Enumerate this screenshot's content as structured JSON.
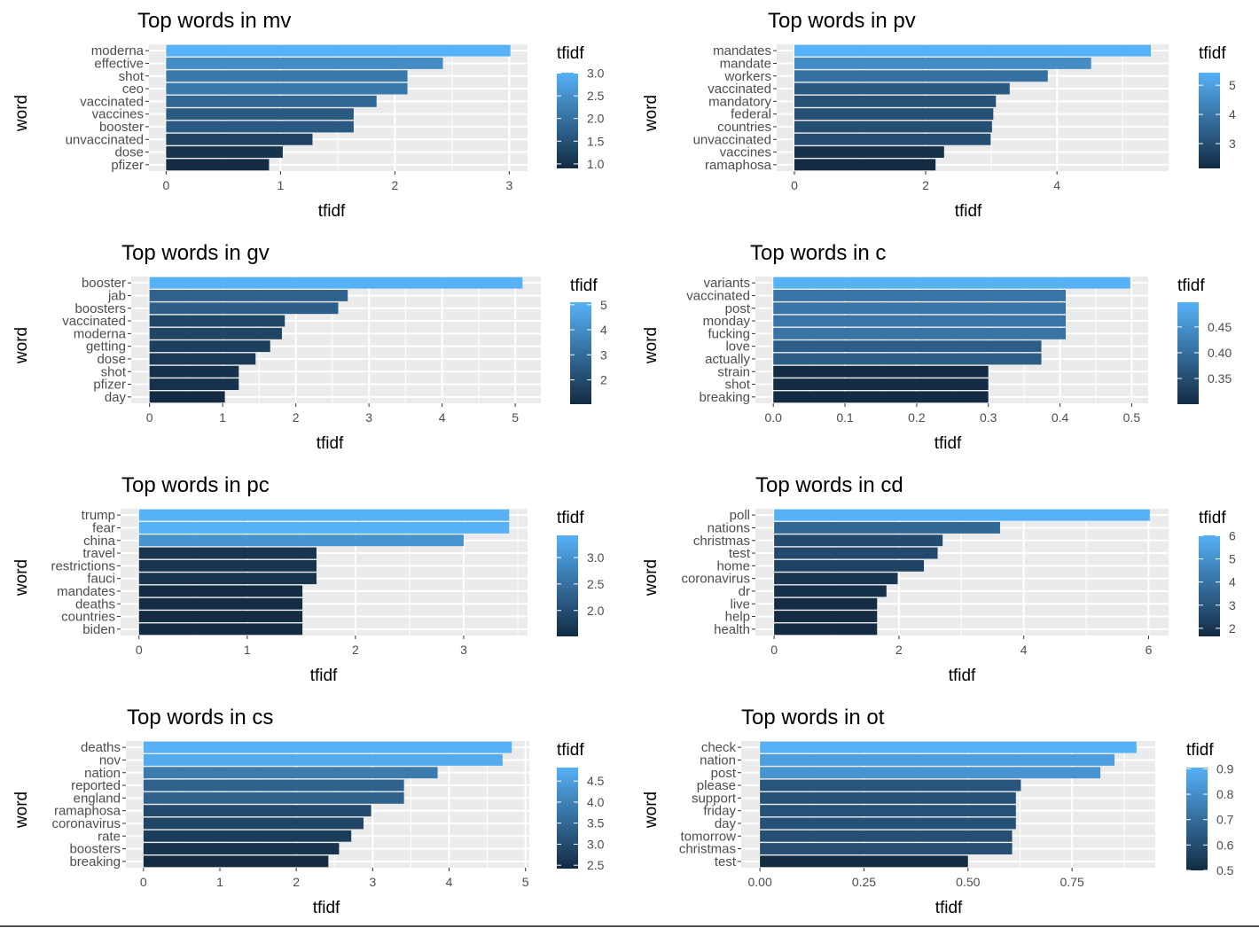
{
  "colors": {
    "low": "#132B43",
    "high": "#56B1F7",
    "panel": "#EBEBEB",
    "grid": "#FFFFFF"
  },
  "chart_data": [
    {
      "type": "bar",
      "title": "Top words in mv",
      "xlabel": "tfidf",
      "ylabel": "word",
      "legend_title": "tfidf",
      "orientation": "horizontal",
      "categories": [
        "moderna",
        "effective",
        "shot",
        "ceo",
        "vaccinated",
        "vaccines",
        "booster",
        "unvaccinated",
        "dose",
        "pfizer"
      ],
      "values": [
        3.01,
        2.42,
        2.11,
        2.11,
        1.84,
        1.64,
        1.64,
        1.28,
        1.02,
        0.9
      ],
      "xticks": [
        0,
        1,
        2,
        3
      ],
      "xtick_labels": [
        "0",
        "1",
        "2",
        "3"
      ],
      "xlim": [
        -0.15,
        3.16
      ],
      "legend_ticks": [
        1.0,
        1.5,
        2.0,
        2.5,
        3.0
      ],
      "legend_labels": [
        "1.0",
        "1.5",
        "2.0",
        "2.5",
        "3.0"
      ]
    },
    {
      "type": "bar",
      "title": "Top words in pv",
      "xlabel": "tfidf",
      "ylabel": "word",
      "legend_title": "tfidf",
      "orientation": "horizontal",
      "categories": [
        "mandates",
        "mandate",
        "workers",
        "vaccinated",
        "mandatory",
        "federal",
        "countries",
        "unvaccinated",
        "vaccines",
        "ramaphosa"
      ],
      "values": [
        5.43,
        4.52,
        3.86,
        3.28,
        3.07,
        3.03,
        3.01,
        2.99,
        2.28,
        2.15
      ],
      "xticks": [
        0,
        2,
        4
      ],
      "xtick_labels": [
        "0",
        "2",
        "4"
      ],
      "xlim": [
        -0.27,
        5.7
      ],
      "legend_ticks": [
        3,
        4,
        5
      ],
      "legend_labels": [
        "3",
        "4",
        "5"
      ]
    },
    {
      "type": "bar",
      "title": "Top words in gv",
      "xlabel": "tfidf",
      "ylabel": "word",
      "legend_title": "tfidf",
      "orientation": "horizontal",
      "categories": [
        "booster",
        "jab",
        "boosters",
        "vaccinated",
        "moderna",
        "getting",
        "dose",
        "shot",
        "pfizer",
        "day"
      ],
      "values": [
        5.1,
        2.71,
        2.58,
        1.85,
        1.81,
        1.65,
        1.45,
        1.22,
        1.22,
        1.03
      ],
      "xticks": [
        0,
        1,
        2,
        3,
        4,
        5
      ],
      "xtick_labels": [
        "0",
        "1",
        "2",
        "3",
        "4",
        "5"
      ],
      "xlim": [
        -0.25,
        5.35
      ],
      "legend_ticks": [
        2,
        3,
        4,
        5
      ],
      "legend_labels": [
        "2",
        "3",
        "4",
        "5"
      ]
    },
    {
      "type": "bar",
      "title": "Top words in c",
      "xlabel": "tfidf",
      "ylabel": "word",
      "legend_title": "tfidf",
      "orientation": "horizontal",
      "categories": [
        "variants",
        "vaccinated",
        "post",
        "monday",
        "fucking",
        "love",
        "actually",
        "strain",
        "shot",
        "breaking"
      ],
      "values": [
        0.498,
        0.408,
        0.408,
        0.408,
        0.408,
        0.374,
        0.374,
        0.3,
        0.3,
        0.3
      ],
      "xticks": [
        0.0,
        0.1,
        0.2,
        0.3,
        0.4,
        0.5
      ],
      "xtick_labels": [
        "0.0",
        "0.1",
        "0.2",
        "0.3",
        "0.4",
        "0.5"
      ],
      "xlim": [
        -0.025,
        0.523
      ],
      "legend_ticks": [
        0.35,
        0.4,
        0.45
      ],
      "legend_labels": [
        "0.35",
        "0.40",
        "0.45"
      ]
    },
    {
      "type": "bar",
      "title": "Top words in pc",
      "xlabel": "tfidf",
      "ylabel": "word",
      "legend_title": "tfidf",
      "orientation": "horizontal",
      "categories": [
        "trump",
        "fear",
        "china",
        "travel",
        "restrictions",
        "fauci",
        "mandates",
        "deaths",
        "countries",
        "biden"
      ],
      "values": [
        3.42,
        3.42,
        3.0,
        1.64,
        1.64,
        1.64,
        1.51,
        1.51,
        1.51,
        1.51
      ],
      "xticks": [
        0,
        1,
        2,
        3
      ],
      "xtick_labels": [
        "0",
        "1",
        "2",
        "3"
      ],
      "xlim": [
        -0.17,
        3.59
      ],
      "legend_ticks": [
        2.0,
        2.5,
        3.0
      ],
      "legend_labels": [
        "2.0",
        "2.5",
        "3.0"
      ]
    },
    {
      "type": "bar",
      "title": "Top words in cd",
      "xlabel": "tfidf",
      "ylabel": "word",
      "legend_title": "tfidf",
      "orientation": "horizontal",
      "categories": [
        "poll",
        "nations",
        "christmas",
        "test",
        "home",
        "coronavirus",
        "dr",
        "live",
        "help",
        "health"
      ],
      "values": [
        6.02,
        3.62,
        2.7,
        2.62,
        2.4,
        1.98,
        1.8,
        1.65,
        1.65,
        1.65
      ],
      "xticks": [
        0,
        2,
        4,
        6
      ],
      "xtick_labels": [
        "0",
        "2",
        "4",
        "6"
      ],
      "xlim": [
        -0.3,
        6.32
      ],
      "legend_ticks": [
        2,
        3,
        4,
        5,
        6
      ],
      "legend_labels": [
        "2",
        "3",
        "4",
        "5",
        "6"
      ]
    },
    {
      "type": "bar",
      "title": "Top words in cs",
      "xlabel": "tfidf",
      "ylabel": "word",
      "legend_title": "tfidf",
      "orientation": "horizontal",
      "categories": [
        "deaths",
        "nov",
        "nation",
        "reported",
        "england",
        "ramaphosa",
        "coronavirus",
        "rate",
        "boosters",
        "breaking"
      ],
      "values": [
        4.82,
        4.7,
        3.85,
        3.41,
        3.41,
        2.98,
        2.88,
        2.72,
        2.56,
        2.42
      ],
      "xticks": [
        0,
        1,
        2,
        3,
        4,
        5
      ],
      "xtick_labels": [
        "0",
        "1",
        "2",
        "3",
        "4",
        "5"
      ],
      "xlim": [
        -0.23,
        5.05
      ],
      "legend_ticks": [
        2.5,
        3.0,
        3.5,
        4.0,
        4.5
      ],
      "legend_labels": [
        "2.5",
        "3.0",
        "3.5",
        "4.0",
        "4.5"
      ]
    },
    {
      "type": "bar",
      "title": "Top words in ot",
      "xlabel": "tfidf",
      "ylabel": "word",
      "legend_title": "tfidf",
      "orientation": "horizontal",
      "categories": [
        "check",
        "nation",
        "post",
        "please",
        "support",
        "friday",
        "day",
        "tomorrow",
        "christmas",
        "test"
      ],
      "values": [
        0.905,
        0.852,
        0.818,
        0.627,
        0.615,
        0.615,
        0.615,
        0.606,
        0.606,
        0.5
      ],
      "xticks": [
        0.0,
        0.25,
        0.5,
        0.75
      ],
      "xtick_labels": [
        "0.00",
        "0.25",
        "0.50",
        "0.75"
      ],
      "xlim": [
        -0.045,
        0.95
      ],
      "legend_ticks": [
        0.5,
        0.6,
        0.7,
        0.8,
        0.9
      ],
      "legend_labels": [
        "0.5",
        "0.6",
        "0.7",
        "0.8",
        "0.9"
      ]
    }
  ]
}
